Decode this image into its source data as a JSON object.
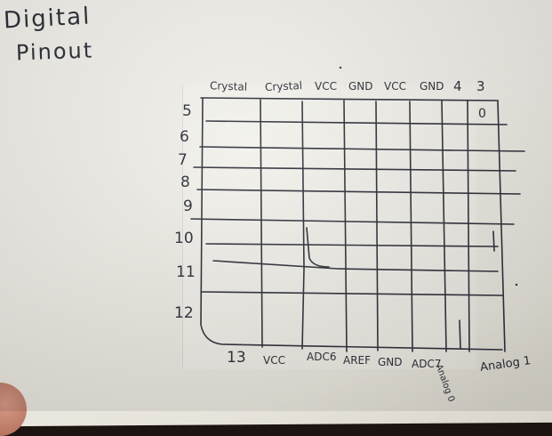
{
  "title": {
    "line1": "Digital",
    "line2": "Pinout"
  },
  "top_headers": [
    "Crystal",
    "Crystal",
    "VCC",
    "GND",
    "VCC",
    "GND",
    "4",
    "3"
  ],
  "row_labels": [
    "5",
    "6",
    "7",
    "8",
    "9",
    "10",
    "11",
    "12"
  ],
  "cell_mark": "0",
  "bottom_labels": [
    "13",
    "VCC",
    "ADC6",
    "AREF",
    "GND",
    "ADC7",
    "Analog 0",
    "Analog 1"
  ]
}
